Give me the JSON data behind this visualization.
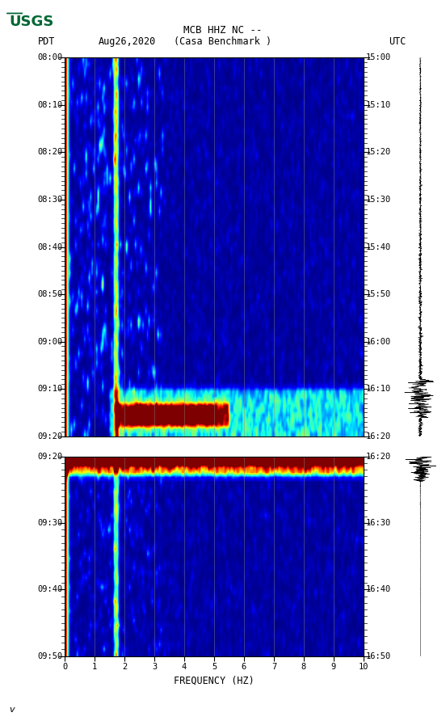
{
  "title_line1": "MCB HHZ NC --",
  "title_line2": "(Casa Benchmark )",
  "date_label": "Aug26,2020",
  "tz_left": "PDT",
  "tz_right": "UTC",
  "freq_min": 0,
  "freq_max": 10,
  "freq_ticks": [
    0,
    1,
    2,
    3,
    4,
    5,
    6,
    7,
    8,
    9,
    10
  ],
  "freq_label": "FREQUENCY (HZ)",
  "panel1_time_left": [
    "08:00",
    "08:10",
    "08:20",
    "08:30",
    "08:40",
    "08:50",
    "09:00",
    "09:10",
    "09:20"
  ],
  "panel1_time_right": [
    "15:00",
    "15:10",
    "15:20",
    "15:30",
    "15:40",
    "15:50",
    "16:00",
    "16:10",
    "16:20"
  ],
  "panel2_time_left": [
    "09:20",
    "09:30",
    "09:40",
    "09:50"
  ],
  "panel2_time_right": [
    "16:20",
    "16:30",
    "16:40",
    "16:50"
  ],
  "background_color": "#ffffff",
  "spectrogram_cmap": "jet",
  "vertical_lines_freq": [
    1,
    2,
    3,
    4,
    5,
    6,
    7,
    8,
    9
  ],
  "vline_color": "#888888",
  "logo_color": "#006633",
  "tick_font_size": 7.5,
  "label_font_size": 8.5,
  "title_font_size": 9,
  "watermark_text": "v"
}
